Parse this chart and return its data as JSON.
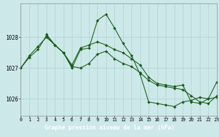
{
  "title": "Graphe pression niveau de la mer (hPa)",
  "bg_color": "#cce8e8",
  "bottom_bar_color": "#2d6b5e",
  "grid_color": "#b0d0d0",
  "line_color": "#1a5c1a",
  "line_width": 0.8,
  "marker_size": 2.0,
  "xlim": [
    0,
    23
  ],
  "ylim": [
    1025.45,
    1029.1
  ],
  "ytick_vals": [
    1026,
    1027,
    1028
  ],
  "xtick_vals": [
    0,
    1,
    2,
    3,
    4,
    5,
    6,
    7,
    8,
    9,
    10,
    11,
    12,
    13,
    14,
    15,
    16,
    17,
    18,
    19,
    20,
    21,
    22,
    23
  ],
  "series": [
    {
      "x": [
        0,
        1,
        2,
        3,
        4,
        5,
        6,
        7,
        8,
        9,
        10,
        11,
        12,
        13,
        14,
        15,
        16,
        17,
        18,
        19,
        20,
        21,
        22,
        23
      ],
      "y": [
        1027.0,
        1027.4,
        1027.7,
        1028.0,
        1027.75,
        1027.5,
        1027.0,
        1027.6,
        1027.65,
        1028.55,
        1028.75,
        1028.3,
        1027.8,
        1027.4,
        1026.8,
        1025.9,
        1025.85,
        1025.8,
        1025.75,
        1025.9,
        1025.95,
        1026.05,
        1026.0,
        1026.05
      ]
    },
    {
      "x": [
        0,
        1,
        2,
        3,
        4,
        5,
        6,
        7,
        8,
        9,
        10,
        11,
        12,
        13,
        14,
        15,
        16,
        17,
        18,
        19,
        20,
        21,
        22,
        23
      ],
      "y": [
        1027.0,
        1027.35,
        1027.6,
        1028.05,
        1027.75,
        1027.5,
        1027.1,
        1027.65,
        1027.75,
        1027.85,
        1027.75,
        1027.6,
        1027.5,
        1027.3,
        1027.1,
        1026.7,
        1026.5,
        1026.45,
        1026.4,
        1026.45,
        1025.9,
        1025.85,
        1026.0,
        1026.55
      ]
    },
    {
      "x": [
        3,
        4,
        5,
        6,
        7,
        8,
        9,
        10,
        11,
        12,
        13,
        14,
        15,
        16,
        17,
        18,
        19,
        20,
        21,
        22,
        23
      ],
      "y": [
        1028.1,
        1027.75,
        1027.5,
        1027.05,
        1027.0,
        1027.15,
        1027.45,
        1027.55,
        1027.3,
        1027.15,
        1027.05,
        1026.85,
        1026.6,
        1026.45,
        1026.4,
        1026.35,
        1026.3,
        1026.1,
        1025.9,
        1025.85,
        1026.1
      ]
    }
  ]
}
